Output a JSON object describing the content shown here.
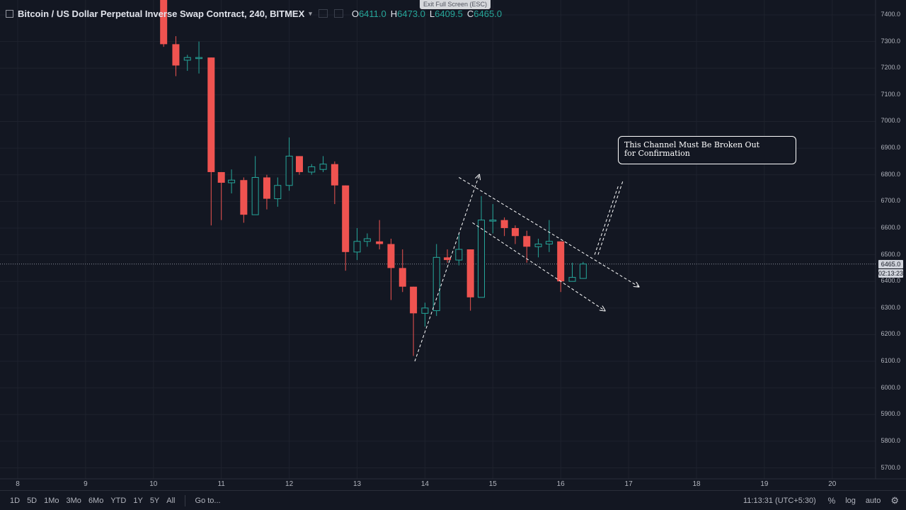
{
  "legend": {
    "title": "Bitcoin / US Dollar Perpetual Inverse Swap Contract, 240, BITMEX",
    "chevron": "▾",
    "ohlc": [
      {
        "k": "O",
        "v": "6411.0"
      },
      {
        "k": "H",
        "v": "6473.0"
      },
      {
        "k": "L",
        "v": "6409.5"
      },
      {
        "k": "C",
        "v": "6465.0"
      }
    ]
  },
  "exit_fullscreen": "Exit Full Screen (ESC)",
  "annotation": "This Channel Must Be Broken Out\nfor Confirmation",
  "price_axis": [
    "7400.0",
    "7300.0",
    "7200.0",
    "7100.0",
    "7000.0",
    "6900.0",
    "6800.0",
    "6700.0",
    "6600.0",
    "6500.0",
    "6400.0",
    "6300.0",
    "6200.0",
    "6100.0",
    "6000.0",
    "5900.0",
    "5800.0",
    "5700.0"
  ],
  "current_price": "6465.0",
  "countdown": "02:13:23",
  "time_axis": [
    "8",
    "9",
    "10",
    "11",
    "12",
    "13",
    "14",
    "15",
    "16",
    "17",
    "18",
    "19",
    "20"
  ],
  "timeframes": [
    "1D",
    "5D",
    "1Mo",
    "3Mo",
    "6Mo",
    "YTD",
    "1Y",
    "5Y",
    "All"
  ],
  "goto": "Go to...",
  "clock": "11:13:31 (UTC+5:30)",
  "right_tools": {
    "percent": "%",
    "log": "log",
    "auto": "auto",
    "settings_icon": "gear-icon"
  },
  "colors": {
    "up": "#26a69a",
    "down": "#ef5350",
    "background": "#131722",
    "grid": "#1e222d"
  },
  "chart_data": {
    "type": "candlestick",
    "ylim": [
      5650,
      7460
    ],
    "x_ticks": [
      "8",
      "9",
      "10",
      "11",
      "12",
      "13",
      "14",
      "15",
      "16",
      "17",
      "18",
      "19",
      "20"
    ],
    "candles": [
      {
        "o": 7460,
        "h": 7460,
        "l": 7280,
        "c": 7290
      },
      {
        "o": 7290,
        "h": 7320,
        "l": 7170,
        "c": 7210
      },
      {
        "o": 7230,
        "h": 7250,
        "l": 7190,
        "c": 7240
      },
      {
        "o": 7240,
        "h": 7300,
        "l": 7180,
        "c": 7240
      },
      {
        "o": 7240,
        "h": 7240,
        "l": 6610,
        "c": 6810
      },
      {
        "o": 6810,
        "h": 6810,
        "l": 6630,
        "c": 6770
      },
      {
        "o": 6770,
        "h": 6820,
        "l": 6730,
        "c": 6780
      },
      {
        "o": 6780,
        "h": 6790,
        "l": 6620,
        "c": 6650
      },
      {
        "o": 6650,
        "h": 6870,
        "l": 6650,
        "c": 6790
      },
      {
        "o": 6790,
        "h": 6800,
        "l": 6670,
        "c": 6710
      },
      {
        "o": 6710,
        "h": 6790,
        "l": 6680,
        "c": 6760
      },
      {
        "o": 6760,
        "h": 6940,
        "l": 6740,
        "c": 6870
      },
      {
        "o": 6870,
        "h": 6870,
        "l": 6800,
        "c": 6810
      },
      {
        "o": 6810,
        "h": 6840,
        "l": 6800,
        "c": 6830
      },
      {
        "o": 6820,
        "h": 6870,
        "l": 6810,
        "c": 6840
      },
      {
        "o": 6840,
        "h": 6850,
        "l": 6690,
        "c": 6760
      },
      {
        "o": 6760,
        "h": 6760,
        "l": 6440,
        "c": 6510
      },
      {
        "o": 6510,
        "h": 6600,
        "l": 6480,
        "c": 6550
      },
      {
        "o": 6550,
        "h": 6580,
        "l": 6530,
        "c": 6560
      },
      {
        "o": 6550,
        "h": 6630,
        "l": 6520,
        "c": 6540
      },
      {
        "o": 6540,
        "h": 6560,
        "l": 6330,
        "c": 6450
      },
      {
        "o": 6450,
        "h": 6520,
        "l": 6360,
        "c": 6380
      },
      {
        "o": 6380,
        "h": 6380,
        "l": 6120,
        "c": 6280
      },
      {
        "o": 6280,
        "h": 6320,
        "l": 6230,
        "c": 6300
      },
      {
        "o": 6290,
        "h": 6540,
        "l": 6270,
        "c": 6490
      },
      {
        "o": 6490,
        "h": 6520,
        "l": 6470,
        "c": 6480
      },
      {
        "o": 6480,
        "h": 6580,
        "l": 6460,
        "c": 6520
      },
      {
        "o": 6520,
        "h": 6520,
        "l": 6290,
        "c": 6340
      },
      {
        "o": 6340,
        "h": 6720,
        "l": 6340,
        "c": 6630
      },
      {
        "o": 6630,
        "h": 6690,
        "l": 6580,
        "c": 6630
      },
      {
        "o": 6630,
        "h": 6640,
        "l": 6570,
        "c": 6600
      },
      {
        "o": 6600,
        "h": 6610,
        "l": 6540,
        "c": 6570
      },
      {
        "o": 6570,
        "h": 6590,
        "l": 6470,
        "c": 6530
      },
      {
        "o": 6530,
        "h": 6560,
        "l": 6490,
        "c": 6540
      },
      {
        "o": 6540,
        "h": 6630,
        "l": 6510,
        "c": 6550
      },
      {
        "o": 6550,
        "h": 6550,
        "l": 6360,
        "c": 6400
      },
      {
        "o": 6400,
        "h": 6470,
        "l": 6400,
        "c": 6415
      },
      {
        "o": 6411,
        "h": 6473,
        "l": 6409.5,
        "c": 6465
      }
    ],
    "first_candle_day": 10.15,
    "candle_step_days": 0.1667,
    "candle_day_fix": [
      [
        10.15,
        10.33,
        10.5,
        10.67,
        10.85,
        11.0,
        11.15,
        11.33,
        11.5,
        11.67,
        11.83,
        12.0,
        12.15,
        12.33,
        12.5,
        12.67,
        12.83,
        13.0,
        13.15,
        13.33,
        13.5,
        13.67,
        13.83,
        14.0,
        14.17,
        14.33,
        14.5,
        14.67,
        14.83,
        15.0,
        15.17,
        15.33,
        15.5,
        15.67,
        15.83,
        16.0,
        16.17,
        16.33
      ]
    ],
    "trendlines": [
      {
        "from": {
          "day": 13.85,
          "price": 6100
        },
        "to": {
          "day": 14.8,
          "price": 6800
        },
        "style": "dashed",
        "arrow": true
      },
      {
        "from": {
          "day": 14.5,
          "price": 6790
        },
        "to": {
          "day": 17.15,
          "price": 6380
        },
        "style": "dashed",
        "arrow": true
      },
      {
        "from": {
          "day": 14.7,
          "price": 6620
        },
        "to": {
          "day": 16.65,
          "price": 6290
        },
        "style": "dashed",
        "arrow": true
      },
      {
        "from": {
          "day": 16.5,
          "price": 6500
        },
        "to": {
          "day": 16.85,
          "price": 6760
        },
        "style": "dashed",
        "arrow": false
      }
    ],
    "last_price_line": 6465
  }
}
